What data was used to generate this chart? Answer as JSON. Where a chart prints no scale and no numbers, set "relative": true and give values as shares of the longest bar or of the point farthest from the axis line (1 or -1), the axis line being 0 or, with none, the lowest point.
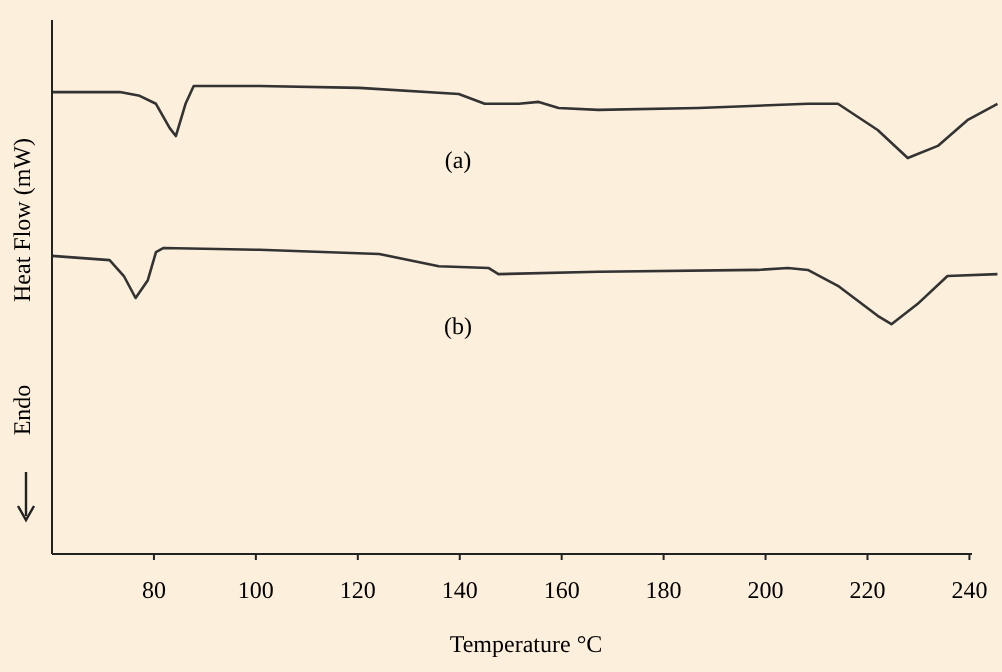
{
  "chart_data": {
    "type": "line",
    "relative": true,
    "xlabel": "Temperature °C",
    "ylabel": "Heat Flow (mW)",
    "xlim": [
      60,
      246
    ],
    "xticks": [
      80,
      100,
      120,
      140,
      160,
      180,
      200,
      220,
      240
    ],
    "grid": false,
    "legend": false,
    "marker": "none",
    "line_style": "solid",
    "annotations": [
      "(a)",
      "(b)",
      "Endo"
    ],
    "series": [
      {
        "color": "#333333",
        "x": [
          60,
          73.3,
          77.2,
          80.4,
          83.1,
          84.3,
          86.2,
          87.8,
          100.7,
          120.3,
          139.8,
          144.9,
          151.6,
          155.5,
          159.4,
          167.2,
          186.8,
          208.3,
          214.2,
          222,
          227.9,
          233.8,
          239.6,
          245.5
        ],
        "values": [
          0.987,
          0.987,
          0.979,
          0.962,
          0.91,
          0.893,
          0.962,
          1.0,
          1.0,
          0.996,
          0.983,
          0.962,
          0.962,
          0.966,
          0.953,
          0.949,
          0.953,
          0.962,
          0.962,
          0.906,
          0.846,
          0.872,
          0.927,
          0.962
        ]
      },
      {
        "color": "#333333",
        "x": [
          60,
          71.3,
          74.1,
          76.4,
          78.8,
          80.4,
          81.9,
          100.7,
          124.2,
          135.9,
          145.7,
          147.6,
          167.2,
          198.5,
          204.4,
          208.3,
          214.2,
          222,
          224.7,
          229.8,
          235.7,
          245.5
        ],
        "values": [
          0.637,
          0.628,
          0.594,
          0.547,
          0.585,
          0.645,
          0.654,
          0.65,
          0.641,
          0.615,
          0.611,
          0.598,
          0.603,
          0.607,
          0.611,
          0.607,
          0.573,
          0.509,
          0.491,
          0.534,
          0.594,
          0.598
        ]
      }
    ]
  }
}
